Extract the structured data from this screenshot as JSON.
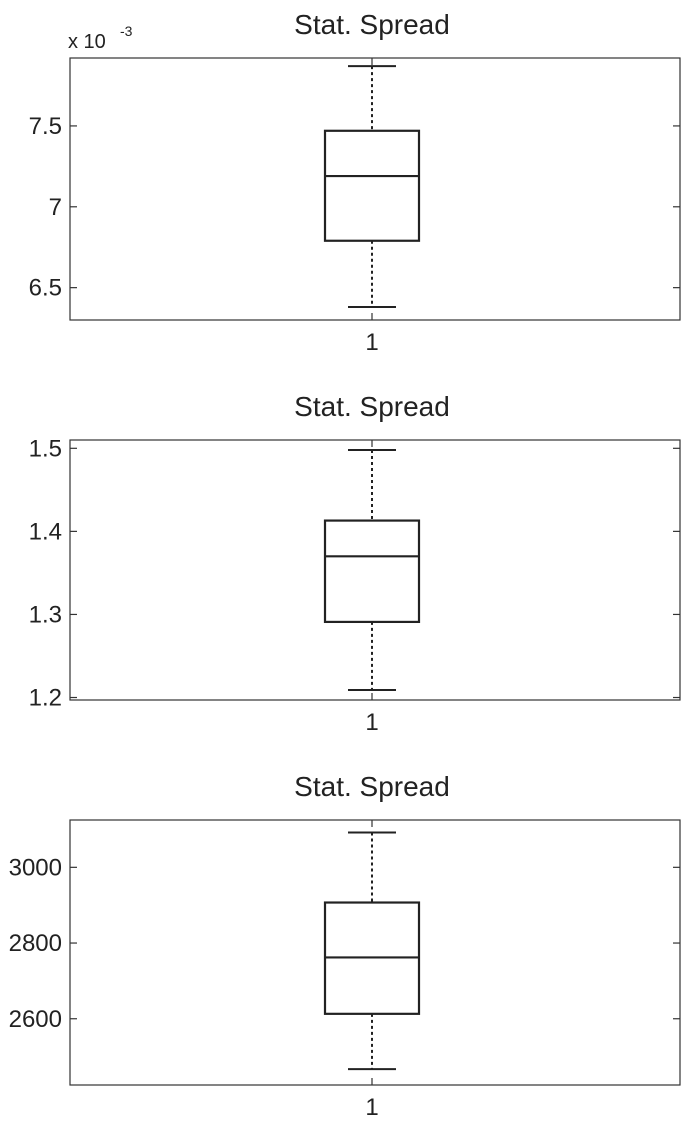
{
  "chart_data": [
    {
      "type": "boxplot",
      "title": "Stat. Spread",
      "exponent_label": "x 10",
      "exponent_power": "-3",
      "categories": [
        "1"
      ],
      "yticks": [
        {
          "value": 6.5,
          "label": "6.5"
        },
        {
          "value": 7.0,
          "label": "7"
        },
        {
          "value": 7.5,
          "label": "7.5"
        }
      ],
      "ylim": [
        6.3,
        7.92
      ],
      "series": [
        {
          "min": 6.38,
          "q1": 6.79,
          "median": 7.19,
          "q3": 7.47,
          "max": 7.87
        }
      ]
    },
    {
      "type": "boxplot",
      "title": "Stat. Spread",
      "categories": [
        "1"
      ],
      "yticks": [
        {
          "value": 1.2,
          "label": "1.2"
        },
        {
          "value": 1.3,
          "label": "1.3"
        },
        {
          "value": 1.4,
          "label": "1.4"
        },
        {
          "value": 1.5,
          "label": "1.5"
        }
      ],
      "ylim": [
        1.197,
        1.51
      ],
      "series": [
        {
          "min": 1.209,
          "q1": 1.291,
          "median": 1.37,
          "q3": 1.413,
          "max": 1.498
        }
      ]
    },
    {
      "type": "boxplot",
      "title": "Stat. Spread",
      "categories": [
        "1"
      ],
      "yticks": [
        {
          "value": 2600,
          "label": "2600"
        },
        {
          "value": 2800,
          "label": "2800"
        },
        {
          "value": 3000,
          "label": "3000"
        }
      ],
      "ylim": [
        2425,
        3125
      ],
      "series": [
        {
          "min": 2467,
          "q1": 2613,
          "median": 2762,
          "q3": 2907,
          "max": 3092
        }
      ]
    }
  ]
}
